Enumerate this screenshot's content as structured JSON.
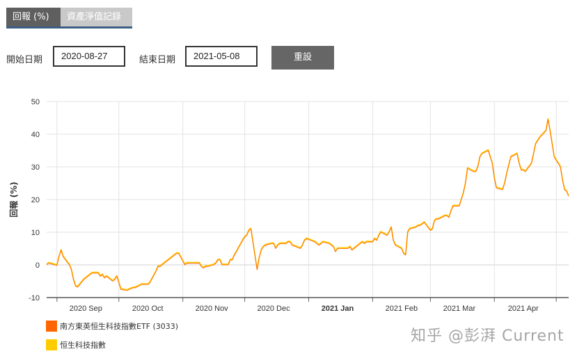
{
  "tabs": [
    {
      "label": "回報 (%)",
      "active": true
    },
    {
      "label": "資產淨值記錄",
      "active": false
    }
  ],
  "date_range": {
    "start_label": "開始日期",
    "start_value": "2020-08-27",
    "end_label": "結束日期",
    "end_value": "2021-05-08",
    "reset_label": "重設"
  },
  "watermark": "知乎 @彭湃 Current",
  "colors": {
    "etf": "#ff6600",
    "index": "#ffcc00",
    "grid": "#e3e3e3",
    "axis": "#333333"
  },
  "chart_data": {
    "type": "line",
    "ylabel": "回報 (%)",
    "ylim": [
      -10,
      50
    ],
    "yticks": [
      -10,
      0,
      10,
      20,
      30,
      40,
      50
    ],
    "x_range": [
      "2020-08-27",
      "2021-05-07"
    ],
    "x_ticks": [
      {
        "label": "2020 Sep",
        "date": "2020-09-15",
        "bold": false
      },
      {
        "label": "2020 Oct",
        "date": "2020-10-15",
        "bold": false
      },
      {
        "label": "2020 Nov",
        "date": "2020-11-15",
        "bold": false
      },
      {
        "label": "2020 Dec",
        "date": "2020-12-15",
        "bold": false
      },
      {
        "label": "2021 Jan",
        "date": "2021-01-15",
        "bold": true
      },
      {
        "label": "2021 Feb",
        "date": "2021-02-15",
        "bold": false
      },
      {
        "label": "2021 Mar",
        "date": "2021-03-15",
        "bold": false
      },
      {
        "label": "2021 Apr",
        "date": "2021-04-15",
        "bold": false
      }
    ],
    "grid": true,
    "legend_position": "bottom-left",
    "series": [
      {
        "name": "南方東英恒生科技指數ETF (3033)",
        "color": "#ff6600",
        "points": [
          [
            "2020-08-27",
            0
          ],
          [
            "2020-08-28",
            0.5
          ],
          [
            "2020-08-31",
            0
          ],
          [
            "2020-09-01",
            -0.2
          ],
          [
            "2020-09-02",
            2.5
          ],
          [
            "2020-09-03",
            4.5
          ],
          [
            "2020-09-04",
            2.5
          ],
          [
            "2020-09-07",
            0
          ],
          [
            "2020-09-08",
            -1.5
          ],
          [
            "2020-09-09",
            -4.5
          ],
          [
            "2020-09-10",
            -6.5
          ],
          [
            "2020-09-11",
            -6.8
          ],
          [
            "2020-09-14",
            -4.5
          ],
          [
            "2020-09-15",
            -4
          ],
          [
            "2020-09-16",
            -3.5
          ],
          [
            "2020-09-17",
            -3
          ],
          [
            "2020-09-18",
            -2.5
          ],
          [
            "2020-09-21",
            -2.5
          ],
          [
            "2020-09-22",
            -3.5
          ],
          [
            "2020-09-23",
            -3
          ],
          [
            "2020-09-24",
            -4
          ],
          [
            "2020-09-25",
            -3.5
          ],
          [
            "2020-09-28",
            -5
          ],
          [
            "2020-09-29",
            -4.5
          ],
          [
            "2020-09-30",
            -3.5
          ],
          [
            "2020-10-02",
            -7.5
          ],
          [
            "2020-10-05",
            -7.8
          ],
          [
            "2020-10-06",
            -7.5
          ],
          [
            "2020-10-08",
            -7
          ],
          [
            "2020-10-09",
            -7
          ],
          [
            "2020-10-12",
            -6
          ],
          [
            "2020-10-13",
            -6
          ],
          [
            "2020-10-14",
            -6
          ],
          [
            "2020-10-15",
            -6
          ],
          [
            "2020-10-16",
            -5.5
          ],
          [
            "2020-10-19",
            -2
          ],
          [
            "2020-10-20",
            -0.5
          ],
          [
            "2020-10-21",
            -0.5
          ],
          [
            "2020-10-22",
            0
          ],
          [
            "2020-10-23",
            0.5
          ],
          [
            "2020-10-26",
            2
          ],
          [
            "2020-10-27",
            2.5
          ],
          [
            "2020-10-28",
            3
          ],
          [
            "2020-10-29",
            3.5
          ],
          [
            "2020-10-30",
            3.5
          ],
          [
            "2020-11-02",
            0
          ],
          [
            "2020-11-03",
            0.5
          ],
          [
            "2020-11-04",
            0.5
          ],
          [
            "2020-11-05",
            0.5
          ],
          [
            "2020-11-06",
            0.5
          ],
          [
            "2020-11-09",
            0.5
          ],
          [
            "2020-11-10",
            -0.5
          ],
          [
            "2020-11-11",
            -1
          ],
          [
            "2020-11-12",
            -0.5
          ],
          [
            "2020-11-13",
            -0.5
          ],
          [
            "2020-11-16",
            0
          ],
          [
            "2020-11-17",
            0.5
          ],
          [
            "2020-11-18",
            1.5
          ],
          [
            "2020-11-19",
            1.5
          ],
          [
            "2020-11-20",
            0
          ],
          [
            "2020-11-23",
            0
          ],
          [
            "2020-11-24",
            1.5
          ],
          [
            "2020-11-25",
            1.5
          ],
          [
            "2020-11-26",
            3
          ],
          [
            "2020-11-27",
            4
          ],
          [
            "2020-11-30",
            7.5
          ],
          [
            "2020-12-01",
            8.5
          ],
          [
            "2020-12-02",
            9
          ],
          [
            "2020-12-03",
            10.5
          ],
          [
            "2020-12-04",
            11
          ],
          [
            "2020-12-07",
            -1.5
          ],
          [
            "2020-12-08",
            2
          ],
          [
            "2020-12-09",
            4.5
          ],
          [
            "2020-12-10",
            5.5
          ],
          [
            "2020-12-11",
            6
          ],
          [
            "2020-12-14",
            6.5
          ],
          [
            "2020-12-15",
            6.5
          ],
          [
            "2020-12-16",
            5
          ],
          [
            "2020-12-17",
            6
          ],
          [
            "2020-12-18",
            6.5
          ],
          [
            "2020-12-21",
            6.5
          ],
          [
            "2020-12-22",
            7
          ],
          [
            "2020-12-23",
            7
          ],
          [
            "2020-12-24",
            6
          ],
          [
            "2020-12-28",
            5
          ],
          [
            "2020-12-29",
            6
          ],
          [
            "2020-12-30",
            7.5
          ],
          [
            "2020-12-31",
            8
          ],
          [
            "2021-01-04",
            7
          ],
          [
            "2021-01-05",
            6.5
          ],
          [
            "2021-01-06",
            6
          ],
          [
            "2021-01-07",
            6.5
          ],
          [
            "2021-01-08",
            7
          ],
          [
            "2021-01-11",
            6.5
          ],
          [
            "2021-01-12",
            6
          ],
          [
            "2021-01-13",
            5.5
          ],
          [
            "2021-01-14",
            4
          ],
          [
            "2021-01-15",
            5
          ],
          [
            "2021-01-18",
            5
          ],
          [
            "2021-01-19",
            5
          ],
          [
            "2021-01-20",
            5
          ],
          [
            "2021-01-21",
            5.5
          ],
          [
            "2021-01-22",
            4.5
          ],
          [
            "2021-01-25",
            6
          ],
          [
            "2021-01-26",
            6.5
          ],
          [
            "2021-01-27",
            7
          ],
          [
            "2021-01-28",
            6.5
          ],
          [
            "2021-01-29",
            7
          ],
          [
            "2021-02-01",
            7
          ],
          [
            "2021-02-02",
            8
          ],
          [
            "2021-02-03",
            7.5
          ],
          [
            "2021-02-04",
            9
          ],
          [
            "2021-02-05",
            10
          ],
          [
            "2021-02-08",
            9
          ],
          [
            "2021-02-09",
            10
          ],
          [
            "2021-02-10",
            11.5
          ],
          [
            "2021-02-11",
            7.5
          ],
          [
            "2021-02-12",
            6
          ],
          [
            "2021-02-15",
            5
          ],
          [
            "2021-02-16",
            3.5
          ],
          [
            "2021-02-17",
            3
          ],
          [
            "2021-02-18",
            10
          ],
          [
            "2021-02-19",
            11
          ],
          [
            "2021-02-22",
            11.5
          ],
          [
            "2021-02-23",
            12
          ],
          [
            "2021-02-24",
            12
          ],
          [
            "2021-02-25",
            12.5
          ],
          [
            "2021-02-26",
            13
          ],
          [
            "2021-03-01",
            10.5
          ],
          [
            "2021-03-02",
            11
          ],
          [
            "2021-03-03",
            13.5
          ],
          [
            "2021-03-04",
            14
          ],
          [
            "2021-03-05",
            14
          ],
          [
            "2021-03-08",
            15
          ],
          [
            "2021-03-09",
            15
          ],
          [
            "2021-03-10",
            14.5
          ],
          [
            "2021-03-11",
            16.5
          ],
          [
            "2021-03-12",
            18
          ],
          [
            "2021-03-15",
            18
          ],
          [
            "2021-03-16",
            20
          ],
          [
            "2021-03-17",
            22
          ],
          [
            "2021-03-18",
            25
          ],
          [
            "2021-03-19",
            29.5
          ],
          [
            "2021-03-22",
            28.5
          ],
          [
            "2021-03-23",
            28.5
          ],
          [
            "2021-03-24",
            30
          ],
          [
            "2021-03-25",
            33
          ],
          [
            "2021-03-26",
            34
          ],
          [
            "2021-03-29",
            35
          ],
          [
            "2021-03-30",
            33
          ],
          [
            "2021-03-31",
            31
          ],
          [
            "2021-04-01",
            26.5
          ],
          [
            "2021-04-02",
            23.5
          ],
          [
            "2021-04-05",
            23
          ],
          [
            "2021-04-06",
            25
          ],
          [
            "2021-04-07",
            28
          ],
          [
            "2021-04-08",
            30.5
          ],
          [
            "2021-04-09",
            33
          ],
          [
            "2021-04-12",
            34
          ],
          [
            "2021-04-13",
            31
          ],
          [
            "2021-04-14",
            29
          ],
          [
            "2021-04-15",
            29
          ],
          [
            "2021-04-16",
            28.5
          ],
          [
            "2021-04-19",
            31
          ],
          [
            "2021-04-20",
            34
          ],
          [
            "2021-04-21",
            37
          ],
          [
            "2021-04-22",
            38
          ],
          [
            "2021-04-23",
            39
          ],
          [
            "2021-04-26",
            41
          ],
          [
            "2021-04-27",
            44.5
          ],
          [
            "2021-04-28",
            41
          ],
          [
            "2021-04-29",
            37
          ],
          [
            "2021-04-30",
            33
          ],
          [
            "2021-05-03",
            30
          ],
          [
            "2021-05-04",
            26
          ],
          [
            "2021-05-05",
            23
          ],
          [
            "2021-05-06",
            22.5
          ],
          [
            "2021-05-07",
            21
          ]
        ]
      },
      {
        "name": "恒生科技指數",
        "color": "#ffcc00",
        "points": []
      }
    ]
  }
}
